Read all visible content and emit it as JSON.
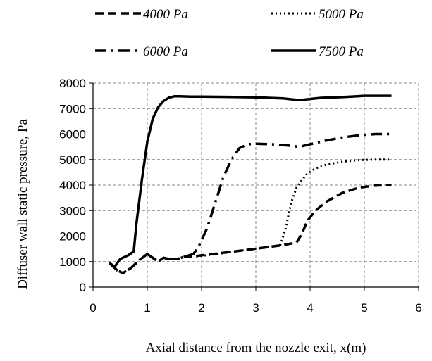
{
  "chart_data": {
    "type": "line",
    "xlabel": "Axial distance from the nozzle exit, x(m)",
    "ylabel": "Diffuser wall static pressure, Pa",
    "xlim": [
      0,
      6
    ],
    "ylim": [
      0,
      8000
    ],
    "xticks": [
      0,
      1,
      2,
      3,
      4,
      5,
      6
    ],
    "yticks": [
      0,
      1000,
      2000,
      3000,
      4000,
      5000,
      6000,
      7000,
      8000
    ],
    "grid": "dashed",
    "legend_position": "top",
    "series": [
      {
        "name": "4000 Pa",
        "style": "dashed",
        "x": [
          0.3,
          0.45,
          0.55,
          0.7,
          0.85,
          1.0,
          1.1,
          1.2,
          1.3,
          1.4,
          1.55,
          1.7,
          1.8,
          2.0,
          2.3,
          2.6,
          2.9,
          3.2,
          3.5,
          3.75,
          3.85,
          3.95,
          4.1,
          4.3,
          4.6,
          4.9,
          5.2,
          5.5
        ],
        "y": [
          950,
          650,
          550,
          750,
          1050,
          1300,
          1150,
          1000,
          1150,
          1100,
          1100,
          1200,
          1180,
          1250,
          1320,
          1400,
          1480,
          1560,
          1650,
          1750,
          2100,
          2600,
          3000,
          3350,
          3700,
          3900,
          3980,
          4000
        ]
      },
      {
        "name": "5000 Pa",
        "style": "dotted",
        "x": [
          1.9,
          2.3,
          2.6,
          2.9,
          3.2,
          3.45,
          3.55,
          3.65,
          3.75,
          3.85,
          3.95,
          4.1,
          4.3,
          4.6,
          4.9,
          5.2,
          5.5
        ],
        "y": [
          1200,
          1300,
          1400,
          1480,
          1560,
          1650,
          2300,
          3300,
          3900,
          4200,
          4450,
          4650,
          4800,
          4920,
          4980,
          5000,
          5000
        ]
      },
      {
        "name": "6000 Pa",
        "style": "dash-dot",
        "x": [
          0.3,
          0.45,
          0.55,
          0.7,
          0.85,
          1.0,
          1.1,
          1.2,
          1.3,
          1.4,
          1.55,
          1.7,
          1.85,
          1.95,
          2.1,
          2.25,
          2.4,
          2.55,
          2.7,
          2.85,
          3.0,
          3.3,
          3.6,
          3.8,
          4.0,
          4.3,
          4.6,
          4.9,
          5.2,
          5.5
        ],
        "y": [
          950,
          650,
          550,
          750,
          1050,
          1300,
          1150,
          1000,
          1150,
          1100,
          1100,
          1200,
          1300,
          1600,
          2300,
          3300,
          4300,
          5000,
          5450,
          5600,
          5620,
          5600,
          5550,
          5500,
          5600,
          5750,
          5870,
          5950,
          6000,
          6000
        ]
      },
      {
        "name": "7500 Pa",
        "style": "solid",
        "x": [
          0.3,
          0.4,
          0.5,
          0.55,
          0.65,
          0.75,
          0.8,
          0.9,
          1.0,
          1.1,
          1.2,
          1.3,
          1.4,
          1.5,
          1.6,
          1.8,
          2.0,
          2.5,
          3.0,
          3.5,
          3.8,
          4.2,
          4.6,
          5.0,
          5.5
        ],
        "y": [
          950,
          800,
          1100,
          1150,
          1250,
          1400,
          2500,
          4200,
          5700,
          6600,
          7050,
          7300,
          7430,
          7480,
          7480,
          7470,
          7470,
          7460,
          7440,
          7400,
          7330,
          7420,
          7450,
          7500,
          7500
        ]
      }
    ]
  }
}
